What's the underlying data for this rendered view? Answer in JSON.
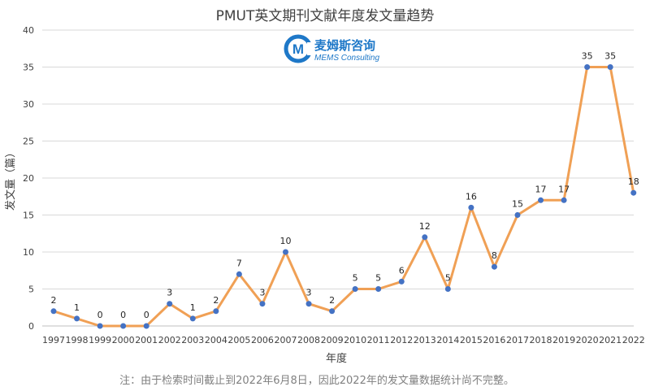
{
  "chart_data": {
    "type": "line",
    "title": "PMUT英文期刊文献年度发文量趋势",
    "xlabel": "年度",
    "ylabel": "发文量（篇）",
    "ylim": [
      0,
      40
    ],
    "yticks": [
      "0",
      "5",
      "10",
      "15",
      "20",
      "25",
      "30",
      "35",
      "40"
    ],
    "grid": true,
    "categories": [
      "1997",
      "1998",
      "1999",
      "2000",
      "2001",
      "2002",
      "2003",
      "2004",
      "2005",
      "2006",
      "2007",
      "2008",
      "2009",
      "2010",
      "2011",
      "2012",
      "2013",
      "2014",
      "2015",
      "2016",
      "2017",
      "2018",
      "2019",
      "2020",
      "2021",
      "2022"
    ],
    "series": [
      {
        "values": [
          2,
          1,
          0,
          0,
          0,
          3,
          1,
          2,
          7,
          3,
          10,
          3,
          2,
          5,
          5,
          6,
          12,
          5,
          16,
          8,
          15,
          17,
          17,
          35,
          35,
          18
        ],
        "line_color": "#f0a055",
        "marker_color": "#4472c4"
      }
    ]
  },
  "logo": {
    "name": "麦姆斯咨询",
    "subtitle": "MEMS Consulting",
    "color": "#1e78c8",
    "letter": "M"
  },
  "note": "注：由于检索时间截止到2022年6月8日，因此2022年的发文量数据统计尚不完整。"
}
